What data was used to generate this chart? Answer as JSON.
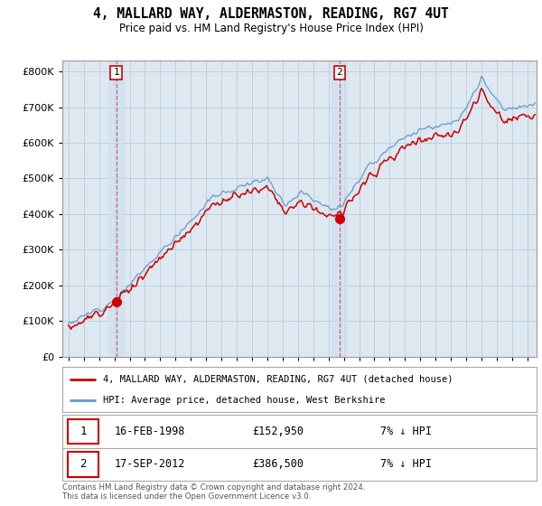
{
  "title": "4, MALLARD WAY, ALDERMASTON, READING, RG7 4UT",
  "subtitle": "Price paid vs. HM Land Registry's House Price Index (HPI)",
  "ytick_values": [
    0,
    100000,
    200000,
    300000,
    400000,
    500000,
    600000,
    700000,
    800000
  ],
  "ylim": [
    0,
    830000
  ],
  "sale1": {
    "date": "16-FEB-1998",
    "price": 152950,
    "year": 1998.12,
    "label": "1",
    "pct": "7% ↓ HPI"
  },
  "sale2": {
    "date": "17-SEP-2012",
    "price": 386500,
    "year": 2012.71,
    "label": "2",
    "pct": "7% ↓ HPI"
  },
  "legend_line1": "4, MALLARD WAY, ALDERMASTON, READING, RG7 4UT (detached house)",
  "legend_line2": "HPI: Average price, detached house, West Berkshire",
  "footnote": "Contains HM Land Registry data © Crown copyright and database right 2024.\nThis data is licensed under the Open Government Licence v3.0.",
  "red_color": "#cc0000",
  "blue_color": "#6699cc",
  "chart_bg": "#dde8f0",
  "bg_color": "#ffffff",
  "grid_color": "#bbccdd"
}
